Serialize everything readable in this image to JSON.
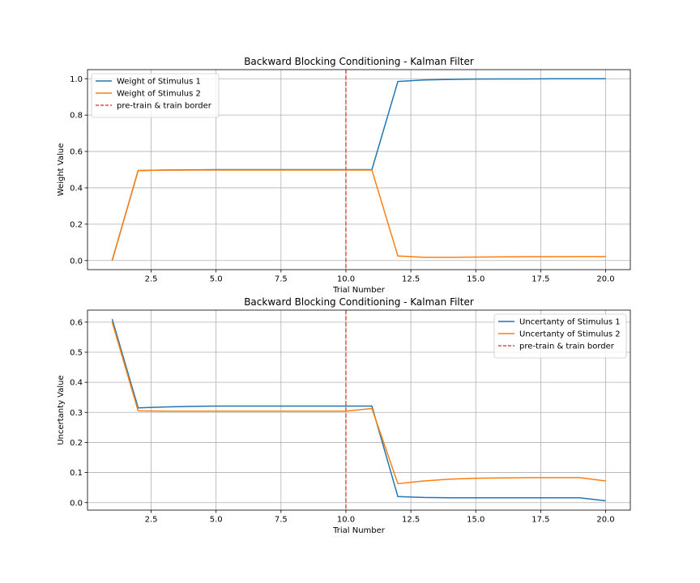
{
  "chart_data": [
    {
      "type": "line",
      "title": "Backward Blocking Conditioning - Kalman Filter",
      "xlabel": "Trial Number",
      "ylabel": "Weight Value",
      "xlim": [
        0.05,
        20.95
      ],
      "ylim": [
        -0.05,
        1.05
      ],
      "xticks": [
        2.5,
        5.0,
        7.5,
        10.0,
        12.5,
        15.0,
        17.5,
        20.0
      ],
      "xtick_labels": [
        "2.5",
        "5.0",
        "7.5",
        "10.0",
        "12.5",
        "15.0",
        "17.5",
        "20.0"
      ],
      "yticks": [
        0.0,
        0.2,
        0.4,
        0.6,
        0.8,
        1.0
      ],
      "ytick_labels": [
        "0.0",
        "0.2",
        "0.4",
        "0.6",
        "0.8",
        "1.0"
      ],
      "grid": true,
      "legend_position": "top-left",
      "x": [
        1,
        2,
        3,
        4,
        5,
        6,
        7,
        8,
        9,
        10,
        11,
        12,
        13,
        14,
        15,
        16,
        17,
        18,
        19,
        20
      ],
      "series": [
        {
          "name": "Weight of Stimulus 1",
          "color": "#1f77b4",
          "values": [
            0.0,
            0.495,
            0.498,
            0.499,
            0.5,
            0.5,
            0.5,
            0.5,
            0.5,
            0.5,
            0.5,
            0.985,
            0.993,
            0.996,
            0.998,
            0.999,
            0.999,
            1.0,
            1.0,
            1.0
          ]
        },
        {
          "name": "Weight of Stimulus 2",
          "color": "#ff7f0e",
          "values": [
            0.0,
            0.495,
            0.497,
            0.498,
            0.498,
            0.498,
            0.498,
            0.498,
            0.498,
            0.498,
            0.498,
            0.025,
            0.018,
            0.018,
            0.019,
            0.02,
            0.021,
            0.021,
            0.022,
            0.022
          ]
        }
      ],
      "vline": {
        "x": 10,
        "name": "pre-train & train border",
        "color": "#d62728",
        "style": "dashed"
      }
    },
    {
      "type": "line",
      "title": "Backward Blocking Conditioning - Kalman Filter",
      "xlabel": "Trial Number",
      "ylabel": "Uncertanty Value",
      "xlim": [
        0.05,
        20.95
      ],
      "ylim": [
        -0.025,
        0.64
      ],
      "xticks": [
        2.5,
        5.0,
        7.5,
        10.0,
        12.5,
        15.0,
        17.5,
        20.0
      ],
      "xtick_labels": [
        "2.5",
        "5.0",
        "7.5",
        "10.0",
        "12.5",
        "15.0",
        "17.5",
        "20.0"
      ],
      "yticks": [
        0.0,
        0.1,
        0.2,
        0.3,
        0.4,
        0.5,
        0.6
      ],
      "ytick_labels": [
        "0.0",
        "0.1",
        "0.2",
        "0.3",
        "0.4",
        "0.5",
        "0.6"
      ],
      "grid": true,
      "legend_position": "top-right",
      "x": [
        1,
        2,
        3,
        4,
        5,
        6,
        7,
        8,
        9,
        10,
        11,
        12,
        13,
        14,
        15,
        16,
        17,
        18,
        19,
        20
      ],
      "series": [
        {
          "name": "Uncertanty of Stimulus 1",
          "color": "#1f77b4",
          "values": [
            0.61,
            0.315,
            0.318,
            0.32,
            0.321,
            0.321,
            0.321,
            0.321,
            0.321,
            0.321,
            0.321,
            0.02,
            0.017,
            0.016,
            0.016,
            0.016,
            0.016,
            0.016,
            0.016,
            0.006
          ]
        },
        {
          "name": "Uncertanty of Stimulus 2",
          "color": "#ff7f0e",
          "values": [
            0.6,
            0.305,
            0.304,
            0.304,
            0.304,
            0.304,
            0.304,
            0.304,
            0.304,
            0.304,
            0.313,
            0.063,
            0.072,
            0.078,
            0.081,
            0.082,
            0.083,
            0.083,
            0.083,
            0.072
          ]
        }
      ],
      "vline": {
        "x": 10,
        "name": "pre-train & train border",
        "color": "#d62728",
        "style": "dashed"
      }
    }
  ]
}
